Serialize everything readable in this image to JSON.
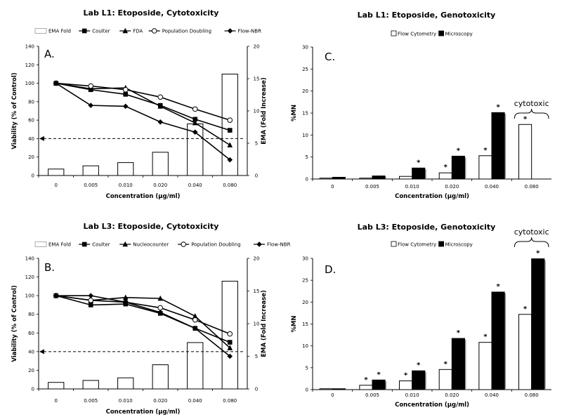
{
  "chart_data": [
    {
      "id": "A",
      "type": "bar+line",
      "panel_label": "A.",
      "title": "Lab L1: Etoposide, Cytotoxicity",
      "xlabel": "Concentration (µg/ml)",
      "ylabel": "Viability (% of Control)",
      "y2label": "EMA (Fold Increase)",
      "categories": [
        "0",
        "0.005",
        "0.010",
        "0.020",
        "0.040",
        "0.080"
      ],
      "ylim": [
        0,
        140
      ],
      "yticks": [
        "0",
        "20",
        "40",
        "60",
        "80",
        "100",
        "120",
        "140"
      ],
      "y2lim": [
        0,
        20
      ],
      "y2ticks": [
        "0",
        "5",
        "10",
        "15",
        "20"
      ],
      "threshold": 40,
      "bars": {
        "name": "EMA Fold",
        "values": [
          1.0,
          1.5,
          2.0,
          3.6,
          8.0,
          15.7
        ]
      },
      "series": [
        {
          "name": "Coulter",
          "marker": "square",
          "values": [
            100,
            93,
            88,
            76,
            61,
            49
          ]
        },
        {
          "name": "FDA",
          "marker": "triangle",
          "values": [
            100,
            94,
            95,
            75,
            57,
            33
          ]
        },
        {
          "name": "Population Doubling",
          "marker": "circle",
          "values": [
            100,
            97,
            93,
            85,
            72,
            60
          ]
        },
        {
          "name": "Flow-NBR",
          "marker": "diamond",
          "values": [
            100,
            76,
            75,
            58,
            47,
            17
          ]
        }
      ],
      "legend": [
        "EMA Fold",
        "Coulter",
        "FDA",
        "Population Doubling",
        "Flow-NBR"
      ]
    },
    {
      "id": "B",
      "type": "bar+line",
      "panel_label": "B.",
      "title": "Lab L3: Etoposide, Cytotoxicity",
      "xlabel": "Concentration (µg/ml)",
      "ylabel": "Viability (% of Control)",
      "y2label": "EMA (Fold Increase)",
      "categories": [
        "0",
        "0.005",
        "0.010",
        "0.020",
        "0.040",
        "0.080"
      ],
      "ylim": [
        0,
        140
      ],
      "yticks": [
        "0",
        "20",
        "40",
        "60",
        "80",
        "100",
        "120",
        "140"
      ],
      "y2lim": [
        0,
        20
      ],
      "y2ticks": [
        "0",
        "5",
        "10",
        "15",
        "20"
      ],
      "threshold": 40,
      "bars": {
        "name": "EMA Fold",
        "values": [
          1.0,
          1.3,
          1.7,
          3.7,
          7.1,
          16.5
        ]
      },
      "series": [
        {
          "name": "Coulter",
          "marker": "square",
          "values": [
            100,
            90,
            91,
            81,
            65,
            50
          ]
        },
        {
          "name": "Nucleocounter",
          "marker": "triangle",
          "values": [
            100,
            95,
            98,
            97,
            78,
            44
          ]
        },
        {
          "name": "Population Doubling",
          "marker": "circle",
          "values": [
            100,
            95,
            93,
            87,
            74,
            59
          ]
        },
        {
          "name": "Flow-NBR",
          "marker": "diamond",
          "values": [
            100,
            100,
            93,
            82,
            65,
            35
          ]
        }
      ],
      "legend": [
        "EMA Fold",
        "Coulter",
        "Nucleocounter",
        "Population Doubling",
        "Flow-NBR"
      ]
    },
    {
      "id": "C",
      "type": "bar",
      "panel_label": "C.",
      "title": "Lab L1: Etoposide, Genotoxicity",
      "xlabel": "Concentration (µg/ml)",
      "ylabel": "%MN",
      "categories": [
        "0",
        "0.005",
        "0.010",
        "0.020",
        "0.040",
        "0.080"
      ],
      "ylim": [
        0,
        30
      ],
      "yticks": [
        "0",
        "5",
        "10",
        "15",
        "20",
        "25",
        "30"
      ],
      "series": [
        {
          "name": "Flow Cytometry",
          "color": "#ffffff",
          "values": [
            0.2,
            0.2,
            0.6,
            1.4,
            5.3,
            12.4
          ],
          "significant": [
            false,
            false,
            false,
            true,
            true,
            true
          ]
        },
        {
          "name": "Microscopy",
          "color": "#000000",
          "values": [
            0.4,
            0.7,
            2.5,
            5.2,
            15.1,
            null
          ],
          "significant": [
            false,
            false,
            true,
            true,
            true,
            false
          ]
        }
      ],
      "annotation": {
        "text": "cytotoxic",
        "category": "0.080"
      },
      "legend": [
        "Flow Cytometry",
        "Microscopy"
      ]
    },
    {
      "id": "D",
      "type": "bar",
      "panel_label": "D.",
      "title": "Lab L3: Etoposide, Genotoxicity",
      "xlabel": "Concentration (µg/ml)",
      "ylabel": "%MN",
      "categories": [
        "0",
        "0.005",
        "0.010",
        "0.020",
        "0.040",
        "0.080"
      ],
      "ylim": [
        0,
        30
      ],
      "yticks": [
        "0",
        "5",
        "10",
        "15",
        "20",
        "25",
        "30"
      ],
      "series": [
        {
          "name": "Flow Cytometry",
          "color": "#ffffff",
          "values": [
            0.2,
            1.0,
            2.0,
            4.6,
            10.8,
            17.2
          ],
          "significant": [
            false,
            true,
            true,
            true,
            true,
            true
          ]
        },
        {
          "name": "Microscopy",
          "color": "#000000",
          "values": [
            0.2,
            2.2,
            4.3,
            11.7,
            22.3,
            29.9
          ],
          "significant": [
            false,
            true,
            true,
            true,
            true,
            true
          ]
        }
      ],
      "annotation": {
        "text": "cytotoxic",
        "category": "0.080"
      },
      "legend": [
        "Flow Cytometry",
        "Microscopy"
      ]
    }
  ]
}
